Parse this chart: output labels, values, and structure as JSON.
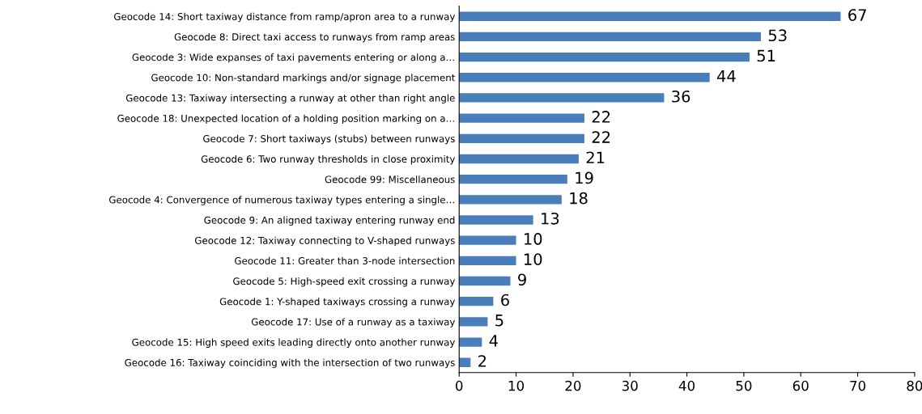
{
  "chart_data": {
    "type": "bar",
    "orientation": "horizontal",
    "categories": [
      "Geocode 14: Short taxiway distance from ramp/apron area to a runway",
      "Geocode 8: Direct taxi access to runways from ramp areas",
      "Geocode 3: Wide expanses of taxi pavements entering or along a…",
      "Geocode 10: Non-standard markings and/or signage placement",
      "Geocode 13: Taxiway intersecting a runway at other than right angle",
      "Geocode 18: Unexpected location of a holding position marking on a…",
      "Geocode 7: Short taxiways (stubs) between runways",
      "Geocode 6: Two runway thresholds in close proximity",
      "Geocode 99: Miscellaneous",
      "Geocode 4: Convergence of numerous taxiway types entering a single…",
      "Geocode 9: An aligned taxiway entering runway end",
      "Geocode 12: Taxiway connecting to V-shaped runways",
      "Geocode 11: Greater than 3-node intersection",
      "Geocode 5: High-speed exit crossing a runway",
      "Geocode 1: Y-shaped taxiways crossing a runway",
      "Geocode 17: Use of a runway as a taxiway",
      "Geocode 15: High speed exits leading directly onto another runway",
      "Geocode 16: Taxiway coinciding with the intersection of two runways"
    ],
    "values": [
      67,
      53,
      51,
      44,
      36,
      22,
      22,
      21,
      19,
      18,
      13,
      10,
      10,
      9,
      6,
      5,
      4,
      2
    ],
    "color": "#4a7ebb",
    "data_labels": true,
    "grid": false,
    "xlim": [
      0,
      80
    ],
    "xticks": [
      0,
      10,
      20,
      30,
      40,
      50,
      60,
      70,
      80
    ]
  }
}
